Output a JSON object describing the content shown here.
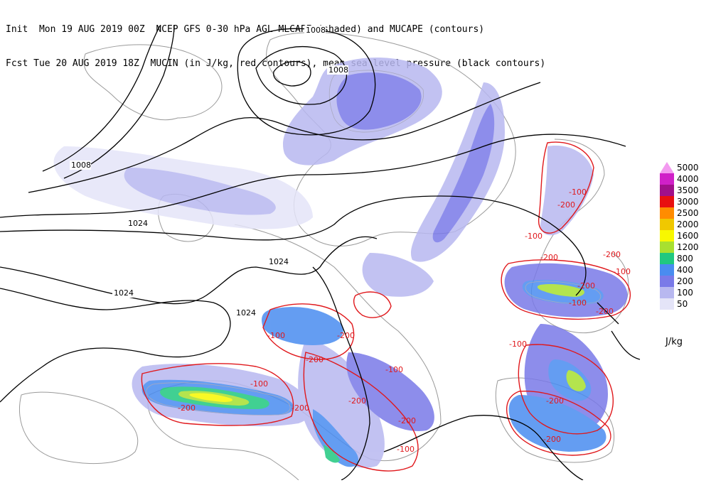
{
  "title": {
    "line1": "Init  Mon 19 AUG 2019 00Z  NCEP GFS 0-30 hPa AGL MLCAPE (shaded) and MUCAPE (contours)",
    "line2": "Fcst Tue 20 AUG 2019 18Z  MUCIN (in J/kg, red contours), mean sea level pressure (black contours)"
  },
  "legend": {
    "units": "J/kg",
    "levels": [
      {
        "label": "5000",
        "color": "#f39af0"
      },
      {
        "label": "4000",
        "color": "#d020c8"
      },
      {
        "label": "3500",
        "color": "#a0108a"
      },
      {
        "label": "3000",
        "color": "#e81010"
      },
      {
        "label": "2500",
        "color": "#ff8c00"
      },
      {
        "label": "2000",
        "color": "#f0c800"
      },
      {
        "label": "1600",
        "color": "#f8f800"
      },
      {
        "label": "1200",
        "color": "#a8e030"
      },
      {
        "label": "800",
        "color": "#20c880"
      },
      {
        "label": "400",
        "color": "#4a8cf0"
      },
      {
        "label": "200",
        "color": "#7a7ae8"
      },
      {
        "label": "100",
        "color": "#b8b8f0"
      },
      {
        "label": "50",
        "color": "#e4e4f8"
      }
    ]
  },
  "pressure_labels": [
    "1008",
    "1008",
    "1008",
    "1024",
    "1024",
    "1024",
    "1024"
  ],
  "cin_labels": [
    "-100",
    "-200",
    "-100",
    "-200",
    "-200",
    "-100",
    "-100",
    "-200",
    "-200",
    "-100",
    "-200",
    "-200",
    "-100",
    "-200",
    "-100",
    "-200",
    "-200",
    "-200",
    "-100",
    "-200",
    "-200",
    "-100"
  ]
}
